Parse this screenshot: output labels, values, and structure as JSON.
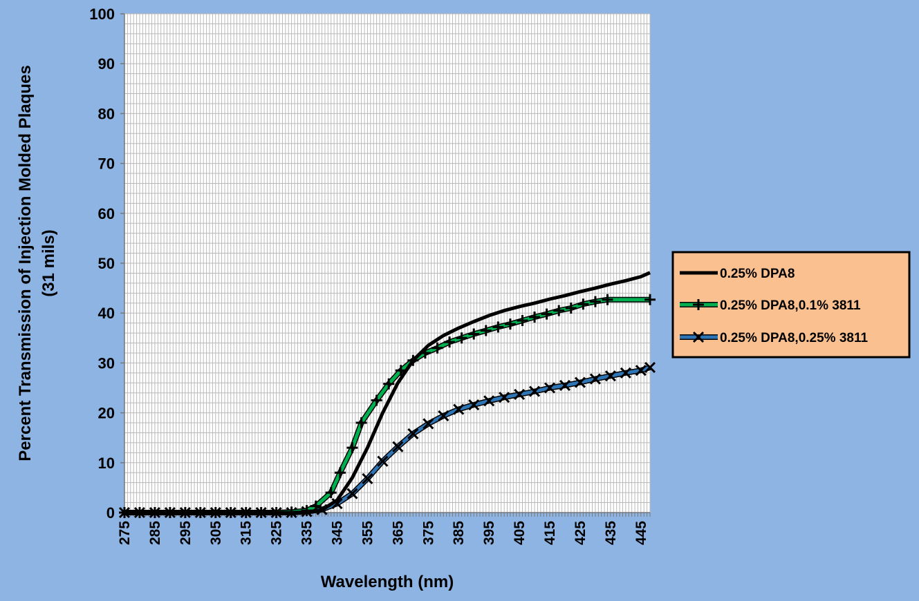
{
  "chart_data": {
    "type": "line",
    "title": "",
    "xlabel": "Wavelength (nm)",
    "ylabel_lines": [
      "Percent Transmission of Injection Molded Plaques",
      "(31 mils)"
    ],
    "ylim": [
      0,
      100
    ],
    "y_ticks": [
      0,
      10,
      20,
      30,
      40,
      50,
      60,
      70,
      80,
      90,
      100
    ],
    "x_start": 275,
    "x_end": 448,
    "x_tick_labels": [
      275,
      285,
      295,
      305,
      315,
      325,
      335,
      345,
      355,
      365,
      375,
      385,
      395,
      405,
      415,
      425,
      435,
      445
    ],
    "grid": true,
    "legend_position": "right",
    "series": [
      {
        "name": "0.25% DPA8",
        "color": "#000000",
        "marker": "none",
        "points": [
          [
            275,
            0
          ],
          [
            280,
            0
          ],
          [
            285,
            0
          ],
          [
            290,
            0
          ],
          [
            295,
            0
          ],
          [
            300,
            0
          ],
          [
            305,
            0
          ],
          [
            310,
            0
          ],
          [
            315,
            0
          ],
          [
            320,
            0
          ],
          [
            325,
            0
          ],
          [
            330,
            0
          ],
          [
            335,
            0.1
          ],
          [
            340,
            0.5
          ],
          [
            345,
            2.5
          ],
          [
            350,
            7
          ],
          [
            355,
            13
          ],
          [
            360,
            20
          ],
          [
            365,
            26
          ],
          [
            370,
            30.5
          ],
          [
            375,
            33.5
          ],
          [
            380,
            35.5
          ],
          [
            385,
            37
          ],
          [
            390,
            38.3
          ],
          [
            395,
            39.5
          ],
          [
            400,
            40.5
          ],
          [
            405,
            41.3
          ],
          [
            410,
            42
          ],
          [
            415,
            42.8
          ],
          [
            420,
            43.5
          ],
          [
            425,
            44.3
          ],
          [
            430,
            45
          ],
          [
            435,
            45.8
          ],
          [
            440,
            46.5
          ],
          [
            445,
            47.3
          ],
          [
            448,
            48.1
          ]
        ]
      },
      {
        "name": "0.25% DPA8,0.1% 3811",
        "color": "#00B050",
        "marker": "plus",
        "points": [
          [
            275,
            0
          ],
          [
            280,
            0
          ],
          [
            285,
            0
          ],
          [
            290,
            0
          ],
          [
            295,
            0
          ],
          [
            300,
            0
          ],
          [
            305,
            0
          ],
          [
            310,
            0
          ],
          [
            315,
            0
          ],
          [
            320,
            0
          ],
          [
            325,
            0
          ],
          [
            330,
            0.1
          ],
          [
            335,
            0.4
          ],
          [
            338,
            1.3
          ],
          [
            343,
            4
          ],
          [
            346,
            8
          ],
          [
            350,
            13
          ],
          [
            353,
            18
          ],
          [
            358,
            22.5
          ],
          [
            362,
            25.8
          ],
          [
            366,
            28.5
          ],
          [
            370,
            30.5
          ],
          [
            374,
            32
          ],
          [
            378,
            33
          ],
          [
            382,
            34.2
          ],
          [
            386,
            35
          ],
          [
            390,
            35.8
          ],
          [
            394,
            36.5
          ],
          [
            398,
            37.2
          ],
          [
            402,
            37.8
          ],
          [
            406,
            38.5
          ],
          [
            410,
            39.2
          ],
          [
            414,
            39.8
          ],
          [
            418,
            40.5
          ],
          [
            422,
            41
          ],
          [
            426,
            41.8
          ],
          [
            430,
            42.3
          ],
          [
            434,
            42.7
          ],
          [
            448,
            42.7
          ]
        ]
      },
      {
        "name": "0.25% DPA8,0.25% 3811",
        "color": "#2E75B6",
        "marker": "x",
        "points": [
          [
            275,
            0
          ],
          [
            280,
            0
          ],
          [
            285,
            0
          ],
          [
            290,
            0
          ],
          [
            295,
            0
          ],
          [
            300,
            0
          ],
          [
            305,
            0
          ],
          [
            310,
            0
          ],
          [
            315,
            0
          ],
          [
            320,
            0
          ],
          [
            325,
            0
          ],
          [
            330,
            0
          ],
          [
            335,
            0.2
          ],
          [
            340,
            0.6
          ],
          [
            345,
            1.8
          ],
          [
            350,
            3.8
          ],
          [
            355,
            6.8
          ],
          [
            360,
            10.3
          ],
          [
            365,
            13.2
          ],
          [
            370,
            15.8
          ],
          [
            375,
            17.8
          ],
          [
            380,
            19.4
          ],
          [
            385,
            20.7
          ],
          [
            390,
            21.6
          ],
          [
            395,
            22.4
          ],
          [
            400,
            23.1
          ],
          [
            405,
            23.7
          ],
          [
            410,
            24.3
          ],
          [
            415,
            25
          ],
          [
            420,
            25.5
          ],
          [
            425,
            26.1
          ],
          [
            430,
            26.8
          ],
          [
            435,
            27.4
          ],
          [
            440,
            28
          ],
          [
            445,
            28.5
          ],
          [
            448,
            29.1
          ]
        ]
      }
    ]
  }
}
